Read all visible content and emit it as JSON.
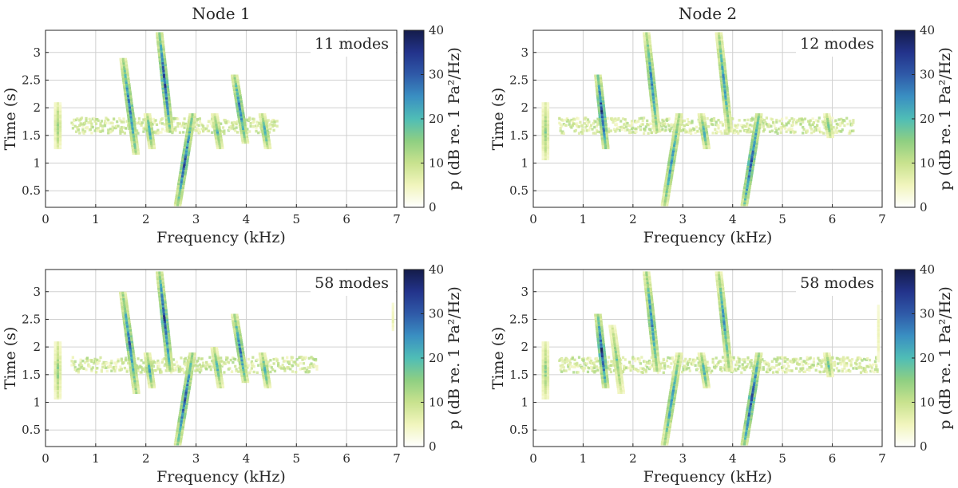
{
  "figure": {
    "titles": [
      "Node 1",
      "Node 2"
    ]
  },
  "colorbar": {
    "label": "p (dB re. 1 Pa²/Hz)",
    "ticks": [
      "0",
      "10",
      "20",
      "30",
      "40"
    ],
    "range": [
      0,
      40
    ],
    "colors": [
      "#ffffff",
      "#f1f5bd",
      "#c8e28e",
      "#8fcf82",
      "#4fbdb6",
      "#3a8fc2",
      "#2f5aa8",
      "#23338b",
      "#141c4a"
    ]
  },
  "chart_data": [
    {
      "type": "heatmap",
      "title": "Node 1",
      "annotation": "11 modes",
      "xlabel": "Frequency (kHz)",
      "ylabel": "Time (s)",
      "xlim": [
        0,
        7
      ],
      "ylim": [
        0.2,
        3.4
      ],
      "xticks": [
        "0",
        "1",
        "2",
        "3",
        "4",
        "5",
        "6",
        "7"
      ],
      "yticks": [
        "0.5",
        "1",
        "1.5",
        "2",
        "2.5",
        "3"
      ],
      "grid": true,
      "tracks": [
        {
          "f0": 0.22,
          "t0": 1.3,
          "t1": 2.1,
          "slope": 0.0,
          "level": 16
        },
        {
          "f0": 1.65,
          "t0": 1.2,
          "t1": 2.9,
          "slope": -0.25,
          "level": 30
        },
        {
          "f0": 2.35,
          "t0": 1.6,
          "t1": 3.4,
          "slope": -0.2,
          "level": 34
        },
        {
          "f0": 2.75,
          "t0": 0.2,
          "t1": 1.9,
          "slope": 0.3,
          "level": 32
        },
        {
          "f0": 2.05,
          "t0": 1.3,
          "t1": 1.9,
          "slope": -0.25,
          "level": 24
        },
        {
          "f0": 3.4,
          "t0": 1.3,
          "t1": 1.9,
          "slope": -0.3,
          "level": 22
        },
        {
          "f0": 3.85,
          "t0": 1.4,
          "t1": 2.6,
          "slope": -0.3,
          "level": 30
        },
        {
          "f0": 4.35,
          "t0": 1.3,
          "t1": 1.9,
          "slope": -0.3,
          "level": 24
        }
      ],
      "bands": [
        {
          "f_start": 0.5,
          "f_end": 4.6,
          "t": 1.7,
          "level": 10
        }
      ]
    },
    {
      "type": "heatmap",
      "title": "Node 2",
      "annotation": "12 modes",
      "xlabel": "Frequency (kHz)",
      "ylabel": "Time (s)",
      "xlim": [
        0,
        7
      ],
      "ylim": [
        0.2,
        3.4
      ],
      "xticks": [
        "0",
        "1",
        "2",
        "3",
        "4",
        "5",
        "6",
        "7"
      ],
      "yticks": [
        "0.5",
        "1",
        "1.5",
        "2",
        "2.5",
        "3"
      ],
      "grid": true,
      "tracks": [
        {
          "f0": 0.22,
          "t0": 1.1,
          "t1": 2.1,
          "slope": 0.0,
          "level": 16
        },
        {
          "f0": 1.35,
          "t0": 1.3,
          "t1": 2.6,
          "slope": -0.2,
          "level": 36
        },
        {
          "f0": 2.35,
          "t0": 1.6,
          "t1": 3.4,
          "slope": -0.2,
          "level": 28
        },
        {
          "f0": 2.75,
          "t0": 0.2,
          "t1": 1.9,
          "slope": 0.3,
          "level": 26
        },
        {
          "f0": 3.8,
          "t0": 1.6,
          "t1": 3.4,
          "slope": -0.2,
          "level": 26
        },
        {
          "f0": 4.35,
          "t0": 0.2,
          "t1": 1.9,
          "slope": 0.3,
          "level": 34
        },
        {
          "f0": 3.4,
          "t0": 1.3,
          "t1": 1.9,
          "slope": -0.3,
          "level": 24
        },
        {
          "f0": 5.9,
          "t0": 1.5,
          "t1": 1.9,
          "slope": -0.3,
          "level": 20
        }
      ],
      "bands": [
        {
          "f_start": 0.5,
          "f_end": 6.4,
          "t": 1.7,
          "level": 10
        }
      ]
    },
    {
      "type": "heatmap",
      "title": "",
      "annotation": "58 modes",
      "xlabel": "Frequency (kHz)",
      "ylabel": "Time (s)",
      "xlim": [
        0,
        7
      ],
      "ylim": [
        0.2,
        3.4
      ],
      "xticks": [
        "0",
        "1",
        "2",
        "3",
        "4",
        "5",
        "6",
        "7"
      ],
      "yticks": [
        "0.5",
        "1",
        "1.5",
        "2",
        "2.5",
        "3"
      ],
      "grid": true,
      "tracks": [
        {
          "f0": 0.22,
          "t0": 1.1,
          "t1": 2.1,
          "slope": 0.0,
          "level": 16
        },
        {
          "f0": 1.65,
          "t0": 1.2,
          "t1": 3.0,
          "slope": -0.25,
          "level": 30
        },
        {
          "f0": 2.35,
          "t0": 1.6,
          "t1": 3.4,
          "slope": -0.2,
          "level": 34
        },
        {
          "f0": 2.75,
          "t0": 0.2,
          "t1": 1.9,
          "slope": 0.3,
          "level": 32
        },
        {
          "f0": 2.05,
          "t0": 1.3,
          "t1": 1.9,
          "slope": -0.25,
          "level": 24
        },
        {
          "f0": 3.4,
          "t0": 1.3,
          "t1": 2.0,
          "slope": -0.3,
          "level": 22
        },
        {
          "f0": 3.85,
          "t0": 1.4,
          "t1": 2.6,
          "slope": -0.3,
          "level": 30
        },
        {
          "f0": 4.35,
          "t0": 1.3,
          "t1": 1.9,
          "slope": -0.3,
          "level": 24
        },
        {
          "f0": 6.95,
          "t0": 2.3,
          "t1": 2.8,
          "slope": 0.0,
          "level": 12
        }
      ],
      "bands": [
        {
          "f_start": 0.5,
          "f_end": 5.4,
          "t": 1.7,
          "level": 10
        }
      ]
    },
    {
      "type": "heatmap",
      "title": "",
      "annotation": "58 modes",
      "xlabel": "Frequency (kHz)",
      "ylabel": "Time (s)",
      "xlim": [
        0,
        7
      ],
      "ylim": [
        0.2,
        3.4
      ],
      "xticks": [
        "0",
        "1",
        "2",
        "3",
        "4",
        "5",
        "6",
        "7"
      ],
      "yticks": [
        "0.5",
        "1",
        "1.5",
        "2",
        "2.5",
        "3"
      ],
      "grid": true,
      "tracks": [
        {
          "f0": 0.22,
          "t0": 1.1,
          "t1": 2.1,
          "slope": 0.0,
          "level": 16
        },
        {
          "f0": 1.35,
          "t0": 1.3,
          "t1": 2.6,
          "slope": -0.2,
          "level": 36
        },
        {
          "f0": 1.65,
          "t0": 1.2,
          "t1": 2.4,
          "slope": -0.25,
          "level": 18
        },
        {
          "f0": 2.35,
          "t0": 1.6,
          "t1": 3.4,
          "slope": -0.2,
          "level": 28
        },
        {
          "f0": 2.75,
          "t0": 0.2,
          "t1": 1.9,
          "slope": 0.3,
          "level": 26
        },
        {
          "f0": 3.8,
          "t0": 1.6,
          "t1": 3.4,
          "slope": -0.2,
          "level": 26
        },
        {
          "f0": 4.35,
          "t0": 0.2,
          "t1": 1.9,
          "slope": 0.3,
          "level": 34
        },
        {
          "f0": 3.4,
          "t0": 1.3,
          "t1": 1.9,
          "slope": -0.3,
          "level": 24
        },
        {
          "f0": 5.9,
          "t0": 1.5,
          "t1": 1.9,
          "slope": -0.3,
          "level": 20
        },
        {
          "f0": 6.95,
          "t0": 1.7,
          "t1": 2.8,
          "slope": 0.0,
          "level": 12
        }
      ],
      "bands": [
        {
          "f_start": 0.5,
          "f_end": 6.9,
          "t": 1.7,
          "level": 10
        }
      ]
    }
  ]
}
